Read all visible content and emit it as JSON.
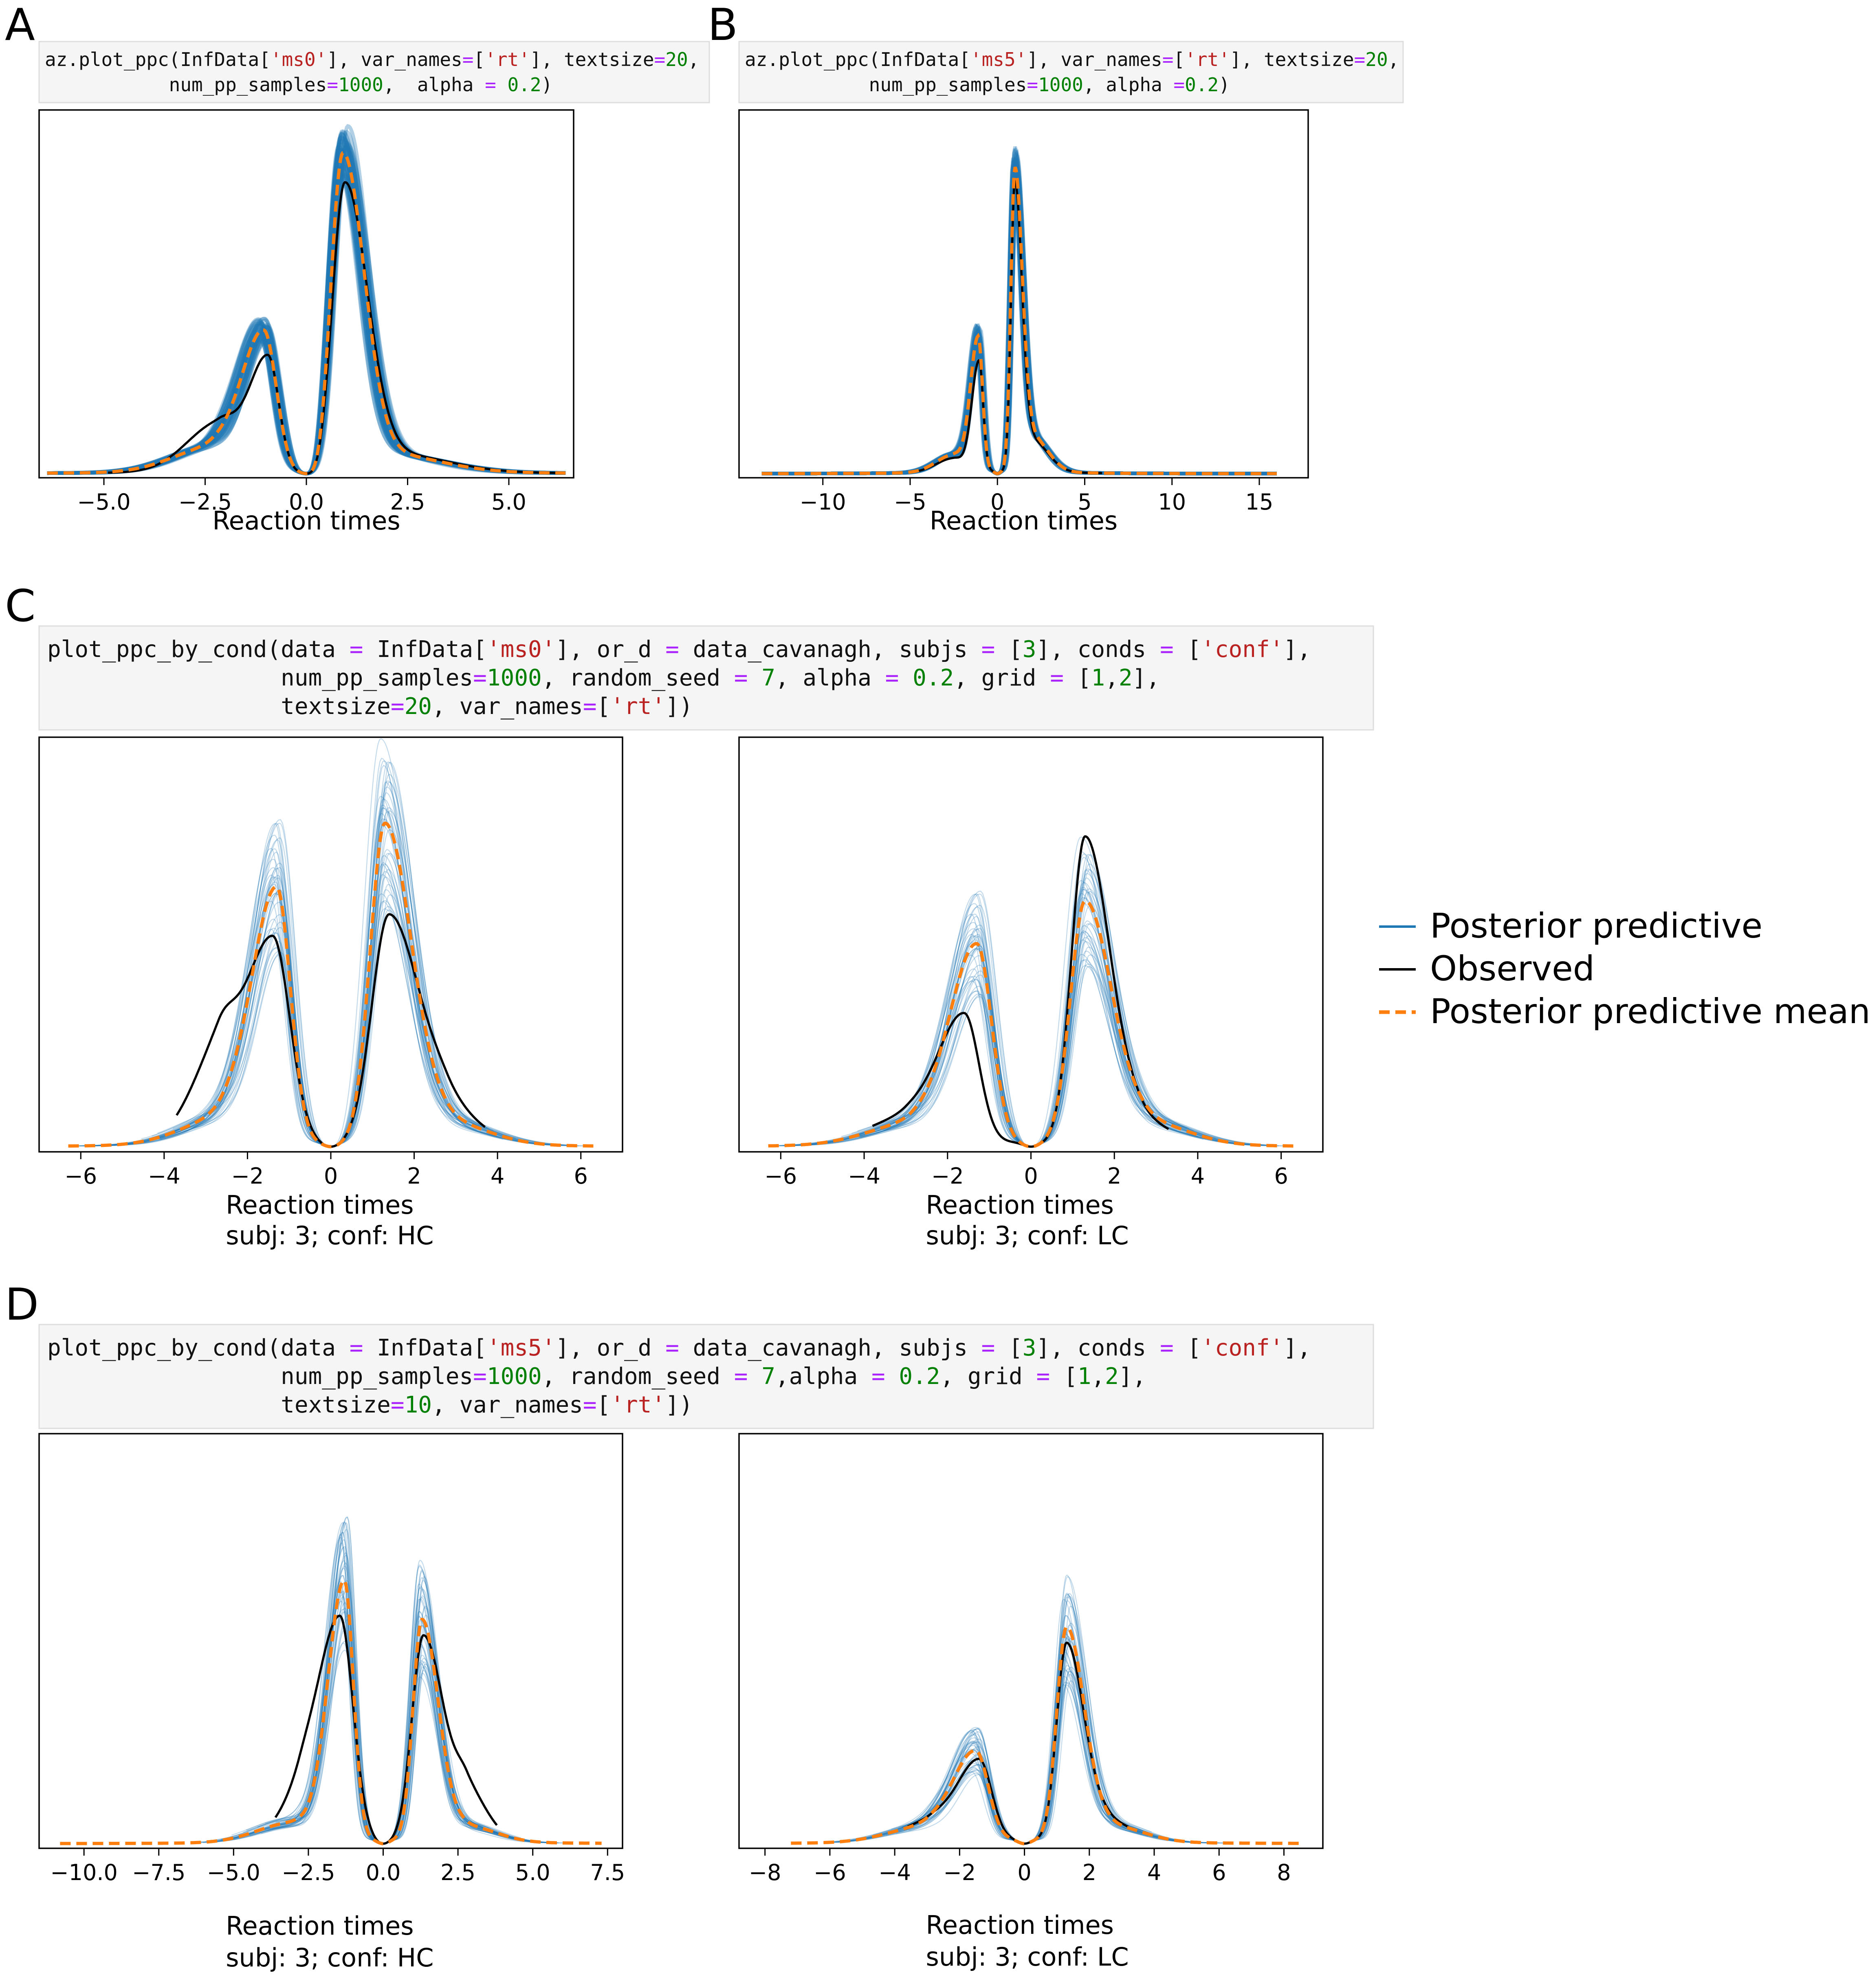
{
  "panels": {
    "A": {
      "letter": "A",
      "code_lines": [
        [
          [
            "def",
            "az.plot_ppc(InfData["
          ],
          [
            "str",
            "'ms0'"
          ],
          [
            "def",
            "], var_names"
          ],
          [
            "op",
            "="
          ],
          [
            "def",
            "["
          ],
          [
            "str",
            "'rt'"
          ],
          [
            "def",
            "], textsize"
          ],
          [
            "op",
            "="
          ],
          [
            "num",
            "20"
          ],
          [
            "def",
            ","
          ]
        ],
        [
          [
            "def",
            "           num_pp_samples"
          ],
          [
            "op",
            "="
          ],
          [
            "num",
            "1000"
          ],
          [
            "def",
            ",  alpha "
          ],
          [
            "op",
            "="
          ],
          [
            "num",
            " 0.2"
          ],
          [
            "def",
            ")"
          ]
        ]
      ]
    },
    "B": {
      "letter": "B",
      "code_lines": [
        [
          [
            "def",
            "az.plot_ppc(InfData["
          ],
          [
            "str",
            "'ms5'"
          ],
          [
            "def",
            "], var_names"
          ],
          [
            "op",
            "="
          ],
          [
            "def",
            "["
          ],
          [
            "str",
            "'rt'"
          ],
          [
            "def",
            "], textsize"
          ],
          [
            "op",
            "="
          ],
          [
            "num",
            "20"
          ],
          [
            "def",
            ","
          ]
        ],
        [
          [
            "def",
            "           num_pp_samples"
          ],
          [
            "op",
            "="
          ],
          [
            "num",
            "1000"
          ],
          [
            "def",
            ", alpha "
          ],
          [
            "op",
            "="
          ],
          [
            "num",
            "0.2"
          ],
          [
            "def",
            ")"
          ]
        ]
      ]
    },
    "C": {
      "letter": "C",
      "code_lines": [
        [
          [
            "def",
            "plot_ppc_by_cond(data "
          ],
          [
            "op",
            "="
          ],
          [
            "def",
            " InfData["
          ],
          [
            "str",
            "'ms0'"
          ],
          [
            "def",
            "], or_d "
          ],
          [
            "op",
            "="
          ],
          [
            "def",
            " data_cavanagh, subjs "
          ],
          [
            "op",
            "="
          ],
          [
            "def",
            " ["
          ],
          [
            "num",
            "3"
          ],
          [
            "def",
            "], conds "
          ],
          [
            "op",
            "="
          ],
          [
            "def",
            " ["
          ],
          [
            "str",
            "'conf'"
          ],
          [
            "def",
            "],"
          ]
        ],
        [
          [
            "def",
            "                 num_pp_samples"
          ],
          [
            "op",
            "="
          ],
          [
            "num",
            "1000"
          ],
          [
            "def",
            ", random_seed "
          ],
          [
            "op",
            "="
          ],
          [
            "num",
            " 7"
          ],
          [
            "def",
            ", alpha "
          ],
          [
            "op",
            "="
          ],
          [
            "num",
            " 0.2"
          ],
          [
            "def",
            ", grid "
          ],
          [
            "op",
            "="
          ],
          [
            "def",
            " ["
          ],
          [
            "num",
            "1"
          ],
          [
            "def",
            ","
          ],
          [
            "num",
            "2"
          ],
          [
            "def",
            "],"
          ]
        ],
        [
          [
            "def",
            "                 textsize"
          ],
          [
            "op",
            "="
          ],
          [
            "num",
            "20"
          ],
          [
            "def",
            ", var_names"
          ],
          [
            "op",
            "="
          ],
          [
            "def",
            "["
          ],
          [
            "str",
            "'rt'"
          ],
          [
            "def",
            "])"
          ]
        ]
      ]
    },
    "D": {
      "letter": "D",
      "code_lines": [
        [
          [
            "def",
            "plot_ppc_by_cond(data "
          ],
          [
            "op",
            "="
          ],
          [
            "def",
            " InfData["
          ],
          [
            "str",
            "'ms5'"
          ],
          [
            "def",
            "], or_d "
          ],
          [
            "op",
            "="
          ],
          [
            "def",
            " data_cavanagh, subjs "
          ],
          [
            "op",
            "="
          ],
          [
            "def",
            " ["
          ],
          [
            "num",
            "3"
          ],
          [
            "def",
            "], conds "
          ],
          [
            "op",
            "="
          ],
          [
            "def",
            " ["
          ],
          [
            "str",
            "'conf'"
          ],
          [
            "def",
            "],"
          ]
        ],
        [
          [
            "def",
            "                 num_pp_samples"
          ],
          [
            "op",
            "="
          ],
          [
            "num",
            "1000"
          ],
          [
            "def",
            ", random_seed "
          ],
          [
            "op",
            "="
          ],
          [
            "num",
            " 7"
          ],
          [
            "def",
            ",alpha "
          ],
          [
            "op",
            "="
          ],
          [
            "num",
            " 0.2"
          ],
          [
            "def",
            ", grid "
          ],
          [
            "op",
            "="
          ],
          [
            "def",
            " ["
          ],
          [
            "num",
            "1"
          ],
          [
            "def",
            ","
          ],
          [
            "num",
            "2"
          ],
          [
            "def",
            "],"
          ]
        ],
        [
          [
            "def",
            "                 textsize"
          ],
          [
            "op",
            "="
          ],
          [
            "num",
            "10"
          ],
          [
            "def",
            ", var_names"
          ],
          [
            "op",
            "="
          ],
          [
            "def",
            "["
          ],
          [
            "str",
            "'rt'"
          ],
          [
            "def",
            "])"
          ]
        ]
      ]
    }
  },
  "legend": {
    "items": [
      {
        "label": "Posterior predictive",
        "color": "#1f77b4",
        "style": "solid"
      },
      {
        "label": "Observed",
        "color": "#000000",
        "style": "solid"
      },
      {
        "label": "Posterior predictive mean",
        "color": "#ff7f0e",
        "style": "dashed"
      }
    ]
  },
  "colors": {
    "posterior_predictive": "#1f77b4",
    "observed": "#000000",
    "posterior_mean": "#ff7f0e",
    "code_background": "#f5f5f5",
    "code_border": "#dddddd"
  },
  "chart_data": [
    {
      "id": "A",
      "type": "line",
      "xlabel": "Reaction times",
      "subtitle": "",
      "xlim": [
        -6.6,
        6.6
      ],
      "ylim": [
        0,
        1.06
      ],
      "xticks": [
        -5.0,
        -2.5,
        0.0,
        2.5,
        5.0
      ],
      "xtick_labels": [
        "−5.0",
        "−2.5",
        "0.0",
        "2.5",
        "5.0"
      ],
      "range": [
        -6.4,
        6.4
      ],
      "ppc_band": true,
      "mean": {
        "neg": [
          [
            -1.05,
            0.4,
            0.55
          ],
          [
            -2.3,
            0.07,
            1.0
          ]
        ],
        "pos": [
          [
            0.9,
            0.9,
            0.52
          ],
          [
            2.0,
            0.05,
            1.3
          ]
        ]
      },
      "observed": {
        "range": [
          -4.9,
          6.3
        ],
        "neg": [
          [
            -0.95,
            0.33,
            0.48
          ],
          [
            -2.15,
            0.14,
            0.8
          ]
        ],
        "pos": [
          [
            0.95,
            0.82,
            0.55
          ],
          [
            2.2,
            0.05,
            1.3
          ]
        ]
      }
    },
    {
      "id": "B",
      "type": "line",
      "xlabel": "Reaction times",
      "subtitle": "",
      "xlim": [
        -14.8,
        17.8
      ],
      "ylim": [
        0,
        1.07
      ],
      "xticks": [
        -10,
        -5,
        0,
        5,
        10,
        15
      ],
      "xtick_labels": [
        "−10",
        "−5",
        "0",
        "5",
        "10",
        "15"
      ],
      "range": [
        -13.5,
        16.0
      ],
      "ppc_band": true,
      "mean": {
        "neg": [
          [
            -1.1,
            0.39,
            0.45
          ],
          [
            -2.5,
            0.05,
            1.0
          ]
        ],
        "pos": [
          [
            1.0,
            0.87,
            0.42
          ],
          [
            2.0,
            0.1,
            0.9
          ]
        ]
      },
      "observed": {
        "range": [
          -5.0,
          6.0
        ],
        "neg": [
          [
            -1.05,
            0.32,
            0.42
          ],
          [
            -2.5,
            0.04,
            1.0
          ]
        ],
        "pos": [
          [
            1.0,
            0.83,
            0.4
          ],
          [
            2.0,
            0.09,
            0.9
          ]
        ]
      }
    },
    {
      "id": "C-HC",
      "type": "line",
      "xlabel": "Reaction times",
      "subtitle": "subj: 3; conf: HC",
      "xlim": [
        -7.0,
        7.0
      ],
      "ylim": [
        0,
        0.96
      ],
      "xticks": [
        -6,
        -4,
        -2,
        0,
        2,
        4,
        6
      ],
      "xtick_labels": [
        "−6",
        "−4",
        "−2",
        "0",
        "2",
        "4",
        "6"
      ],
      "range": [
        -6.3,
        6.3
      ],
      "ppc_band": false,
      "mean": {
        "neg": [
          [
            -1.3,
            0.59,
            0.6
          ],
          [
            -2.6,
            0.06,
            1.0
          ]
        ],
        "pos": [
          [
            1.3,
            0.74,
            0.64
          ],
          [
            2.8,
            0.05,
            1.0
          ]
        ]
      },
      "observed": {
        "range": [
          -3.7,
          3.7
        ],
        "neg": [
          [
            -1.4,
            0.48,
            0.75
          ],
          [
            -2.7,
            0.18,
            0.7
          ]
        ],
        "pos": [
          [
            1.4,
            0.53,
            0.75
          ],
          [
            2.8,
            0.07,
            0.8
          ]
        ]
      }
    },
    {
      "id": "C-LC",
      "type": "line",
      "xlabel": "Reaction times",
      "subtitle": "subj: 3; conf: LC",
      "xlim": [
        -7.0,
        7.0
      ],
      "ylim": [
        0,
        0.96
      ],
      "xticks": [
        -6,
        -4,
        -2,
        0,
        2,
        4,
        6
      ],
      "xtick_labels": [
        "−6",
        "−4",
        "−2",
        "0",
        "2",
        "4",
        "6"
      ],
      "range": [
        -6.3,
        6.3
      ],
      "ppc_band": false,
      "mean": {
        "neg": [
          [
            -1.3,
            0.46,
            0.65
          ],
          [
            -2.8,
            0.05,
            1.1
          ]
        ],
        "pos": [
          [
            1.3,
            0.56,
            0.64
          ],
          [
            2.8,
            0.05,
            1.0
          ]
        ]
      },
      "observed": {
        "range": [
          -3.8,
          3.3
        ],
        "neg": [
          [
            -1.6,
            0.3,
            0.65
          ],
          [
            -3.0,
            0.06,
            1.0
          ]
        ],
        "pos": [
          [
            1.3,
            0.71,
            0.6
          ],
          [
            2.6,
            0.05,
            0.8
          ]
        ]
      }
    },
    {
      "id": "D-HC",
      "type": "line",
      "xlabel": "Reaction times",
      "subtitle": "subj: 3; conf: HC",
      "xlim": [
        -11.5,
        8.0
      ],
      "ylim": [
        0,
        1.07
      ],
      "xticks": [
        -10.0,
        -7.5,
        -5.0,
        -2.5,
        0.0,
        2.5,
        5.0,
        7.5
      ],
      "xtick_labels": [
        "−10.0",
        "−7.5",
        "−5.0",
        "−2.5",
        "0.0",
        "2.5",
        "5.0",
        "7.5"
      ],
      "range": [
        -10.8,
        7.3
      ],
      "ppc_band": false,
      "mean": {
        "neg": [
          [
            -1.3,
            0.67,
            0.55
          ],
          [
            -3.0,
            0.05,
            1.2
          ]
        ],
        "pos": [
          [
            1.3,
            0.57,
            0.55
          ],
          [
            2.8,
            0.04,
            1.0
          ]
        ]
      },
      "observed": {
        "range": [
          -3.6,
          3.8
        ],
        "neg": [
          [
            -1.45,
            0.58,
            0.8
          ],
          [
            -2.8,
            0.08,
            0.8
          ]
        ],
        "pos": [
          [
            1.35,
            0.53,
            0.7
          ],
          [
            2.8,
            0.12,
            0.7
          ]
        ]
      }
    },
    {
      "id": "D-LC",
      "type": "line",
      "xlabel": "Reaction times",
      "subtitle": "subj: 3; conf: LC",
      "xlim": [
        -8.8,
        9.2
      ],
      "ylim": [
        0,
        1.07
      ],
      "xticks": [
        -8,
        -6,
        -4,
        -2,
        0,
        2,
        4,
        6,
        8
      ],
      "xtick_labels": [
        "−8",
        "−6",
        "−4",
        "−2",
        "0",
        "2",
        "4",
        "6",
        "8"
      ],
      "range": [
        -7.2,
        8.5
      ],
      "ppc_band": false,
      "mean": {
        "neg": [
          [
            -1.5,
            0.23,
            0.7
          ],
          [
            -3.0,
            0.04,
            1.2
          ]
        ],
        "pos": [
          [
            1.3,
            0.55,
            0.55
          ],
          [
            2.7,
            0.04,
            1.0
          ]
        ]
      },
      "observed": {
        "range": [
          -3.6,
          3.2
        ],
        "neg": [
          [
            -1.4,
            0.21,
            0.7
          ],
          [
            -2.9,
            0.05,
            1.0
          ]
        ],
        "pos": [
          [
            1.3,
            0.51,
            0.55
          ],
          [
            2.6,
            0.05,
            0.8
          ]
        ]
      }
    }
  ]
}
